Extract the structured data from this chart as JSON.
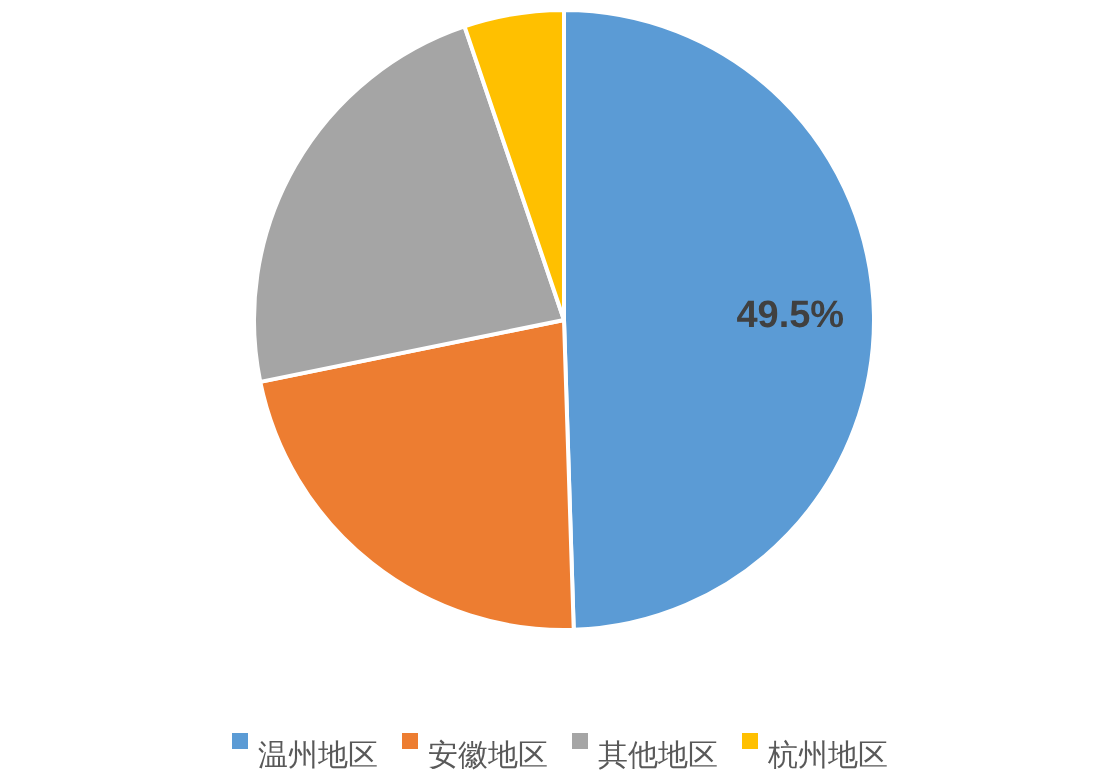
{
  "chart_data": {
    "type": "pie",
    "categories": [
      "温州地区",
      "安徽地区",
      "其他地区",
      "杭州地区"
    ],
    "values": [
      49.5,
      22.3,
      23,
      5.2
    ],
    "colors": [
      "#5b9bd5",
      "#ed7d31",
      "#a5a5a5",
      "#ffc000"
    ],
    "value_labels": [
      "49.5%",
      null,
      null,
      null
    ],
    "legend": "bottom"
  }
}
